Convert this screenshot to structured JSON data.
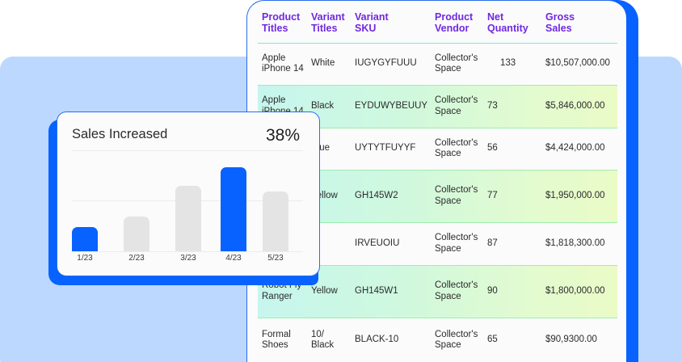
{
  "table": {
    "columns": [
      {
        "line1": "Product",
        "line2": "Titles"
      },
      {
        "line1": "Variant",
        "line2": "Titles"
      },
      {
        "line1": "Variant",
        "line2": "SKU"
      },
      {
        "line1": "Product",
        "line2": "Vendor"
      },
      {
        "line1": "Net",
        "line2": "Quantity"
      },
      {
        "line1": "Gross",
        "line2": "Sales"
      }
    ],
    "rows": [
      {
        "product1": "Apple",
        "product2": "iPhone 14",
        "variant1": "White",
        "variant2": "",
        "sku": "IUGYGYFUUU",
        "vendor1": "Collector's",
        "vendor2": "Space",
        "qty": "133",
        "sales": "$10,507,000.00",
        "highlight": false
      },
      {
        "product1": "Apple",
        "product2": "iPhone 14",
        "variant1": "Black",
        "variant2": "",
        "sku": "EYDUWYBEUUY",
        "vendor1": "Collector's",
        "vendor2": "Space",
        "qty": "73",
        "sales": "$5,846,000.00",
        "highlight": true
      },
      {
        "product1": "",
        "product2": "",
        "variant1": "Blue",
        "variant2": "",
        "sku": "UYTYTFUYYF",
        "vendor1": "Collector's",
        "vendor2": "Space",
        "qty": "56",
        "sales": "$4,424,000.00",
        "highlight": false
      },
      {
        "product1": "",
        "product2": "",
        "variant1": "Yellow",
        "variant2": "",
        "sku": "GH145W2",
        "vendor1": "Collector's",
        "vendor2": "Space",
        "qty": "77",
        "sales": "$1,950,000.00",
        "highlight": true
      },
      {
        "product1": "",
        "product2": "",
        "variant1": "",
        "variant2": "",
        "sku": "IRVEUOIU",
        "vendor1": "Collector's",
        "vendor2": "Space",
        "qty": "87",
        "sales": "$1,818,300.00",
        "highlight": false
      },
      {
        "product1": "Robot Fly",
        "product2": "Ranger",
        "variant1": "Yellow",
        "variant2": "",
        "sku": "GH145W1",
        "vendor1": "Collector's",
        "vendor2": "Space",
        "qty": "90",
        "sales": "$1,800,000.00",
        "highlight": true
      },
      {
        "product1": "Formal",
        "product2": "Shoes",
        "variant1": "10/",
        "variant2": "Black",
        "sku": "BLACK-10",
        "vendor1": "Collector's",
        "vendor2": "Space",
        "qty": "65",
        "sales": "$90,9300.00",
        "highlight": false
      }
    ]
  },
  "sales_card": {
    "title": "Sales Increased",
    "percent": "38%"
  },
  "colors": {
    "accent_blue": "#0762ff",
    "header_purple": "#7029e0",
    "panel_bg": "#bcd8fe",
    "bar_grey": "#e4e4e4"
  },
  "chart_data": {
    "type": "bar",
    "title": "Sales Increased",
    "annotation": "38%",
    "categories": [
      "1/23",
      "2/23",
      "3/23",
      "4/23",
      "5/23"
    ],
    "values": [
      30,
      43,
      81,
      104,
      74
    ],
    "highlighted": [
      true,
      false,
      false,
      true,
      false
    ],
    "xlabel": "",
    "ylabel": "",
    "ylim": [
      0,
      125
    ],
    "grid": true,
    "legend": "none"
  }
}
